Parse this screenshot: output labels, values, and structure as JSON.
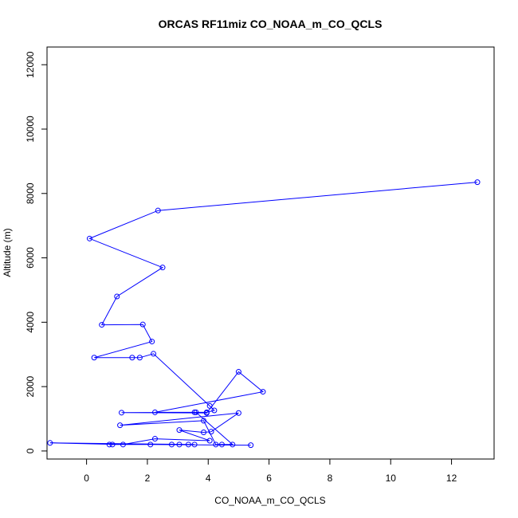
{
  "chart_data": {
    "type": "line",
    "title": "ORCAS RF11miz CO_NOAA_m_CO_QCLS",
    "xlabel": "CO_NOAA_m_CO_QCLS",
    "ylabel": "Altitude (m)",
    "xlim": [
      -1.3,
      13.4
    ],
    "ylim": [
      -250,
      12550
    ],
    "x_ticks": [
      0,
      2,
      4,
      6,
      8,
      10,
      12
    ],
    "y_ticks": [
      0,
      2000,
      4000,
      6000,
      8000,
      10000,
      12000
    ],
    "grid": false,
    "series": [
      {
        "color": "#0000ff",
        "marker": "open-circle",
        "points": [
          [
            12.85,
            8350
          ],
          [
            2.35,
            7470
          ],
          [
            0.1,
            6600
          ],
          [
            2.5,
            5700
          ],
          [
            1.0,
            4800
          ],
          [
            0.5,
            3920
          ],
          [
            1.85,
            3930
          ],
          [
            2.15,
            3400
          ],
          [
            0.25,
            2900
          ],
          [
            1.5,
            2900
          ],
          [
            1.75,
            2900
          ],
          [
            2.2,
            3020
          ],
          [
            4.05,
            1400
          ],
          [
            4.2,
            1260
          ],
          [
            3.95,
            1200
          ],
          [
            3.55,
            1200
          ],
          [
            2.25,
            1200
          ],
          [
            5.8,
            1840
          ],
          [
            5.0,
            2460
          ],
          [
            3.95,
            1180
          ],
          [
            1.15,
            1190
          ],
          [
            3.6,
            1200
          ],
          [
            4.8,
            200
          ],
          [
            4.45,
            200
          ],
          [
            4.25,
            200
          ],
          [
            3.85,
            940
          ],
          [
            1.1,
            800
          ],
          [
            5.0,
            1180
          ],
          [
            4.1,
            600
          ],
          [
            3.85,
            580
          ],
          [
            3.05,
            650
          ],
          [
            4.05,
            320
          ],
          [
            2.25,
            380
          ],
          [
            1.2,
            200
          ],
          [
            -1.2,
            250
          ],
          [
            3.55,
            200
          ],
          [
            3.35,
            200
          ],
          [
            3.05,
            200
          ],
          [
            2.8,
            200
          ],
          [
            0.85,
            200
          ],
          [
            0.75,
            200
          ],
          [
            2.1,
            200
          ],
          [
            5.4,
            180
          ]
        ]
      }
    ]
  }
}
